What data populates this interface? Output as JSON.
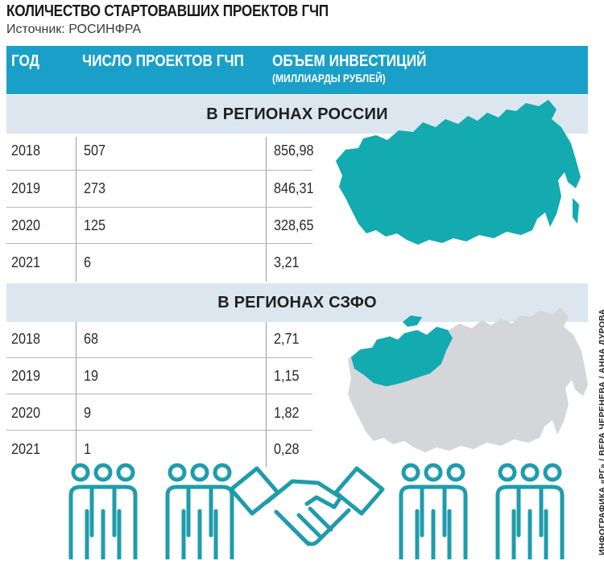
{
  "title": "КОЛИЧЕСТВО СТАРТОВАВШИХ ПРОЕКТОВ ГЧП",
  "source": "Источник: РОСИНФРА",
  "columns": {
    "year": "ГОД",
    "projects": "ЧИСЛО ПРОЕКТОВ ГЧП",
    "investment": "ОБЪЕМ ИНВЕСТИЦИЙ",
    "investment_unit": "(МИЛЛИАРДЫ РУБЛЕЙ)"
  },
  "sections": [
    {
      "title": "В РЕГИОНАХ РОССИИ",
      "rows": [
        {
          "year": "2018",
          "projects": "507",
          "investment": "856,98"
        },
        {
          "year": "2019",
          "projects": "273",
          "investment": "846,31"
        },
        {
          "year": "2020",
          "projects": "125",
          "investment": "328,65"
        },
        {
          "year": "2021",
          "projects": "6",
          "investment": "3,21"
        }
      ]
    },
    {
      "title": "В РЕГИОНАХ СЗФО",
      "rows": [
        {
          "year": "2018",
          "projects": "68",
          "investment": "2,71"
        },
        {
          "year": "2019",
          "projects": "19",
          "investment": "1,15"
        },
        {
          "year": "2020",
          "projects": "9",
          "investment": "1,82"
        },
        {
          "year": "2021",
          "projects": "1",
          "investment": "0,28"
        }
      ]
    }
  ],
  "credit": "ИНФОГРАФИКА «РГ» / ВЕРА ЧЕРЕНЕВА / АННА ДУРОВА",
  "colors": {
    "header": "#1aa0c8",
    "band": "#dce6ee",
    "map_highlight": "#13aab0",
    "map_grey": "#d4d6d9",
    "people": "#1f9cab"
  },
  "icons": [
    "russia-map-icon",
    "szfo-map-icon",
    "people-group-icon",
    "handshake-icon"
  ]
}
